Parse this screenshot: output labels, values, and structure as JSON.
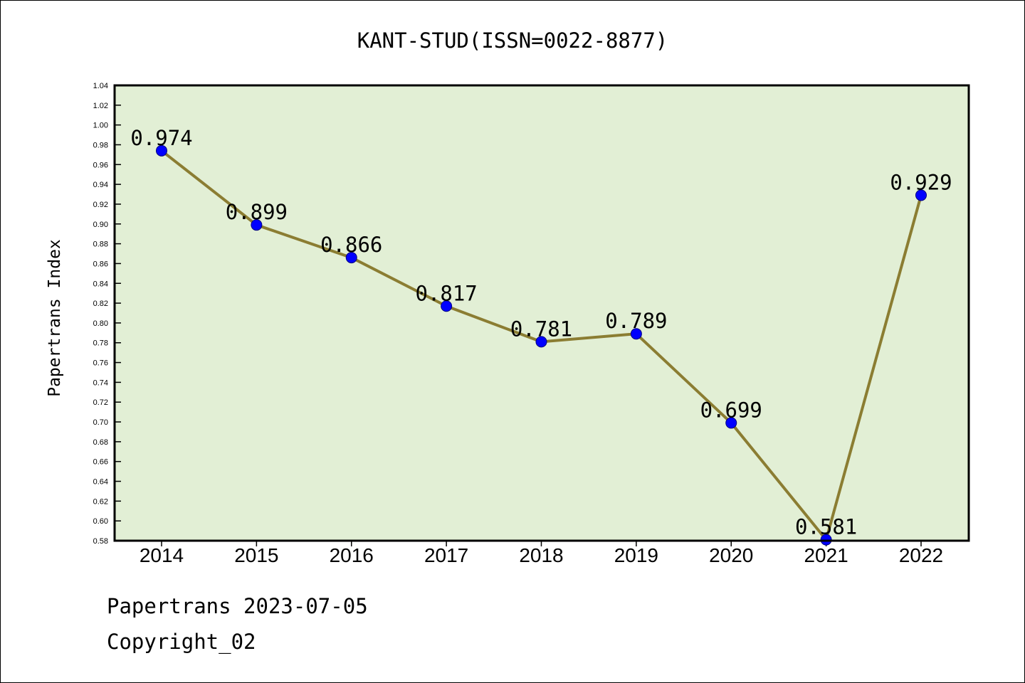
{
  "chart_data": {
    "type": "line",
    "title": "KANT-STUD(ISSN=0022-8877)",
    "xlabel": "",
    "ylabel": "Papertrans Index",
    "categories": [
      "2014",
      "2015",
      "2016",
      "2017",
      "2018",
      "2019",
      "2020",
      "2021",
      "2022"
    ],
    "series": [
      {
        "values": [
          0.974,
          0.899,
          0.866,
          0.817,
          0.781,
          0.789,
          0.699,
          0.581,
          0.929
        ],
        "data_labels": [
          "0.974",
          "0.899",
          "0.866",
          "0.817",
          "0.781",
          "0.789",
          "0.699",
          "0.581",
          "0.929"
        ]
      }
    ],
    "ylim": [
      0.58,
      1.04
    ],
    "ytick_step": 0.02,
    "grid": false,
    "colors": {
      "plot_background": "#e2efd5",
      "line": "#8b7d32",
      "marker": "#0000ff"
    }
  },
  "footer": {
    "line1": "Papertrans 2023-07-05",
    "line2": "Copyright_02"
  }
}
